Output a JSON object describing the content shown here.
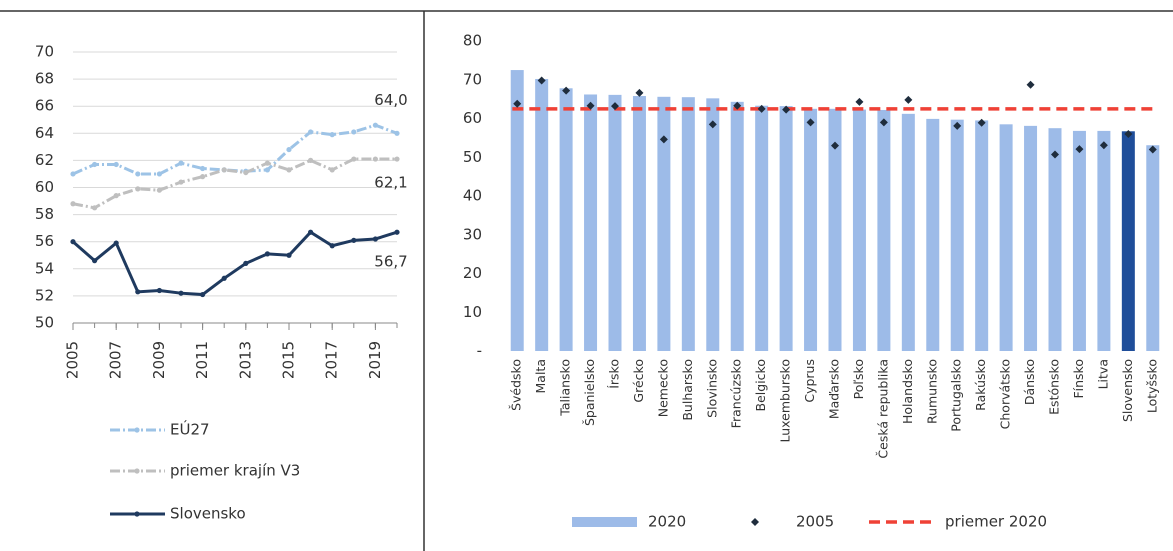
{
  "chart_data": [
    {
      "type": "line",
      "x": [
        2005,
        2006,
        2007,
        2008,
        2009,
        2010,
        2011,
        2012,
        2013,
        2014,
        2015,
        2016,
        2017,
        2018,
        2019,
        2020
      ],
      "xlim": [
        2005,
        2020
      ],
      "xticks": [
        2005,
        2007,
        2009,
        2011,
        2013,
        2015,
        2017,
        2019
      ],
      "ylim": [
        50,
        70
      ],
      "yticks": [
        50,
        52,
        54,
        56,
        58,
        60,
        62,
        64,
        66,
        68,
        70
      ],
      "grid": true,
      "series": [
        {
          "name": "EÚ27",
          "color": "#9dc3e6",
          "values": [
            61.0,
            61.7,
            61.7,
            61.0,
            61.0,
            61.8,
            61.4,
            61.3,
            61.2,
            61.3,
            62.8,
            64.1,
            63.9,
            64.1,
            64.6,
            64.0
          ],
          "value_labels": [
            null,
            null,
            null,
            null,
            null,
            null,
            null,
            null,
            null,
            null,
            null,
            null,
            null,
            null,
            null,
            "64,0"
          ]
        },
        {
          "name": "priemer krajín V3",
          "color": "#bfbfbf",
          "values": [
            58.8,
            58.5,
            59.4,
            59.9,
            59.8,
            60.4,
            60.8,
            61.3,
            61.1,
            61.8,
            61.3,
            62.0,
            61.3,
            62.1,
            62.1,
            62.1
          ],
          "value_labels": [
            null,
            null,
            null,
            null,
            null,
            null,
            null,
            null,
            null,
            null,
            null,
            null,
            null,
            null,
            null,
            "62,1"
          ]
        },
        {
          "name": "Slovensko",
          "color": "#1f3a5f",
          "values": [
            56.0,
            54.6,
            55.9,
            52.3,
            52.4,
            52.2,
            52.1,
            53.3,
            54.4,
            55.1,
            55.0,
            56.7,
            55.7,
            56.1,
            56.2,
            56.7
          ],
          "value_labels": [
            null,
            null,
            null,
            null,
            null,
            null,
            null,
            null,
            null,
            null,
            null,
            null,
            null,
            null,
            null,
            "56,7"
          ]
        }
      ]
    },
    {
      "type": "bar",
      "categories": [
        "Švédsko",
        "Malta",
        "Taliansko",
        "Španielsko",
        "Írsko",
        "Grécko",
        "Nemecko",
        "Bulharsko",
        "Slovinsko",
        "Francúzsko",
        "Belgicko",
        "Luxembursko",
        "Cyprus",
        "Maďarsko",
        "Poľsko",
        "Česká republika",
        "Holandsko",
        "Rumunsko",
        "Portugalsko",
        "Rakúsko",
        "Chorvátsko",
        "Dánsko",
        "Estónsko",
        "Fínsko",
        "Litva",
        "Slovensko",
        "Lotyšsko"
      ],
      "ylim": [
        0,
        80
      ],
      "yticks": [
        {
          "value": 0,
          "label": "-"
        },
        10,
        20,
        30,
        40,
        50,
        60,
        70,
        80
      ],
      "series": [
        {
          "name": "2020",
          "color": "#9dbbe8",
          "colors": [
            "#9dbbe8",
            "#9dbbe8",
            "#9dbbe8",
            "#9dbbe8",
            "#9dbbe8",
            "#9dbbe8",
            "#9dbbe8",
            "#9dbbe8",
            "#9dbbe8",
            "#9dbbe8",
            "#9dbbe8",
            "#9dbbe8",
            "#9dbbe8",
            "#9dbbe8",
            "#9dbbe8",
            "#9dbbe8",
            "#9dbbe8",
            "#9dbbe8",
            "#9dbbe8",
            "#9dbbe8",
            "#9dbbe8",
            "#9dbbe8",
            "#9dbbe8",
            "#9dbbe8",
            "#9dbbe8",
            "#1f4e9a",
            "#9dbbe8"
          ],
          "values": [
            72.5,
            70.2,
            67.8,
            66.2,
            66.1,
            65.8,
            65.6,
            65.5,
            65.2,
            64.3,
            63.3,
            63.2,
            62.5,
            62.5,
            62.3,
            62.2,
            61.2,
            59.9,
            59.7,
            59.5,
            58.5,
            58.1,
            57.5,
            56.8,
            56.8,
            56.7,
            53.1
          ]
        },
        {
          "name": "2005",
          "color": "#1f2d3d",
          "values": [
            63.8,
            69.8,
            67.2,
            63.3,
            63.2,
            66.6,
            54.6,
            null,
            58.5,
            63.3,
            62.5,
            62.3,
            59.0,
            53.0,
            64.3,
            59.0,
            64.8,
            null,
            58.1,
            58.9,
            null,
            68.7,
            50.7,
            52.1,
            53.1,
            56.0,
            52.0
          ]
        }
      ],
      "average": {
        "name": "priemer 2020",
        "value": 62.5,
        "color": "#ef4136"
      }
    }
  ]
}
